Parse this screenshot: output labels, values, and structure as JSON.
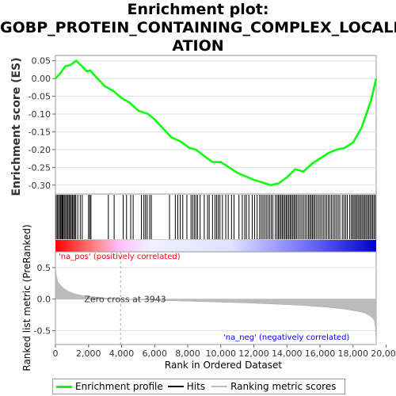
{
  "title_lines": [
    "Enrichment plot:",
    "GOBP_PROTEIN_CONTAINING_COMPLEX_LOCALIZ",
    "ATION"
  ],
  "colors": {
    "es_line": "#00ff00",
    "hits": "#000000",
    "metric_fill": "#bbbbbb",
    "zero_line": "#999999",
    "pos_text": "#ff0000",
    "neg_text": "#0000ff"
  },
  "chart_data": [
    {
      "type": "line",
      "ylabel": "Enrichment score (ES)",
      "xlim": [
        0,
        19400
      ],
      "ylim": [
        -0.325,
        0.065
      ],
      "yticks": [
        "0.05",
        "0.00",
        "-0.05",
        "-0.10",
        "-0.15",
        "-0.20",
        "-0.25",
        "-0.30"
      ],
      "ytick_values": [
        0.05,
        0.0,
        -0.05,
        -0.1,
        -0.15,
        -0.2,
        -0.25,
        -0.3
      ],
      "series": [
        {
          "x": [
            0,
            300,
            600,
            900,
            1250,
            1600,
            1900,
            2100,
            2500,
            3000,
            3500,
            4000,
            4500,
            5000,
            5600,
            6000,
            6500,
            7000,
            7600,
            8100,
            8500,
            9000,
            9500,
            10000,
            10500,
            11000,
            11500,
            12000,
            12500,
            13000,
            13500,
            14000,
            14500,
            15000,
            15500,
            16000,
            16500,
            17000,
            17500,
            18000,
            18500,
            18800,
            19100,
            19300,
            19400
          ],
          "y": [
            0.0,
            0.015,
            0.035,
            0.038,
            0.05,
            0.035,
            0.02,
            0.023,
            0.002,
            -0.022,
            -0.035,
            -0.055,
            -0.068,
            -0.09,
            -0.1,
            -0.115,
            -0.14,
            -0.165,
            -0.178,
            -0.195,
            -0.2,
            -0.218,
            -0.235,
            -0.235,
            -0.25,
            -0.265,
            -0.275,
            -0.285,
            -0.292,
            -0.3,
            -0.295,
            -0.278,
            -0.255,
            -0.262,
            -0.24,
            -0.225,
            -0.21,
            -0.2,
            -0.195,
            -0.18,
            -0.14,
            -0.1,
            -0.06,
            -0.02,
            0.0
          ]
        }
      ]
    },
    {
      "type": "heatmap",
      "hits_x": [
        50,
        130,
        180,
        260,
        320,
        380,
        430,
        480,
        560,
        620,
        700,
        760,
        830,
        900,
        960,
        1030,
        1100,
        1160,
        1230,
        1350,
        1500,
        1620,
        2000,
        2080,
        2150,
        3200,
        3550,
        4100,
        4300,
        4550,
        4700,
        5200,
        5350,
        5450,
        5550,
        5700,
        5800,
        6900,
        7250,
        7400,
        7550,
        7700,
        7950,
        8200,
        8300,
        8400,
        8500,
        8600,
        8750,
        9000,
        9200,
        9300,
        9500,
        9650,
        9750,
        9850,
        9950,
        10100,
        10300,
        10450,
        10650,
        10800,
        11100,
        11300,
        11450,
        11550,
        11700,
        11900,
        12050,
        12200,
        12350,
        12450,
        12550,
        12650,
        12750,
        12850,
        12950,
        13050,
        13150,
        13300,
        13400,
        13480,
        13560,
        13640,
        13720,
        13800,
        13880,
        13960,
        14040,
        14120,
        14200,
        14280,
        14360,
        14440,
        14520,
        14600,
        14700,
        14800,
        14900,
        15000,
        15100,
        15200,
        15300,
        15380,
        15460,
        15540,
        15620,
        15700,
        15800,
        15900,
        16000,
        16100,
        16200,
        16300,
        16400,
        16500,
        16600,
        16700,
        16800,
        16900,
        17000,
        17100,
        17200,
        17350,
        17450,
        17550,
        17650,
        17800,
        17900,
        17980,
        18060,
        18140,
        18220,
        18300,
        18380,
        18460,
        18540,
        18620,
        18700,
        18780,
        18860,
        18940,
        19020,
        19100,
        19180,
        19260,
        19340
      ],
      "pos_label": "'na_pos' (positively correlated)",
      "neg_label": "'na_neg' (negatively correlated)"
    },
    {
      "type": "area",
      "ylabel": "Ranked list metric (PreRanked)",
      "xlabel": "Rank in Ordered Dataset",
      "xlim": [
        0,
        19400
      ],
      "ylim": [
        -0.72,
        0.75
      ],
      "xticks": [
        "0",
        "2,000",
        "4,000",
        "6,000",
        "8,000",
        "10,000",
        "12,000",
        "14,000",
        "16,000",
        "18,000",
        "20,000"
      ],
      "xtick_values": [
        0,
        2000,
        4000,
        6000,
        8000,
        10000,
        12000,
        14000,
        16000,
        18000,
        20000
      ],
      "yticks": [
        "0.5",
        "0.0",
        "-0.5"
      ],
      "ytick_values": [
        0.5,
        0.0,
        -0.5
      ],
      "zero_cross": 3943,
      "zero_cross_label": "Zero cross at 3943",
      "series": [
        {
          "x": [
            0,
            50,
            150,
            300,
            500,
            800,
            1200,
            1800,
            2600,
            3400,
            3943,
            5000,
            7000,
            9000,
            11000,
            13000,
            15000,
            16500,
            17500,
            18200,
            18700,
            19000,
            19200,
            19300,
            19350,
            19400
          ],
          "y": [
            0.55,
            0.38,
            0.28,
            0.22,
            0.17,
            0.12,
            0.08,
            0.05,
            0.03,
            0.01,
            0.0,
            -0.01,
            -0.025,
            -0.04,
            -0.055,
            -0.075,
            -0.1,
            -0.13,
            -0.16,
            -0.19,
            -0.22,
            -0.26,
            -0.3,
            -0.35,
            -0.45,
            -0.72
          ]
        }
      ]
    }
  ],
  "legend": [
    {
      "label": "Enrichment profile",
      "color": "#00ff00"
    },
    {
      "label": "Hits",
      "color": "#000000"
    },
    {
      "label": "Ranking metric scores",
      "color": "#bbbbbb"
    }
  ]
}
